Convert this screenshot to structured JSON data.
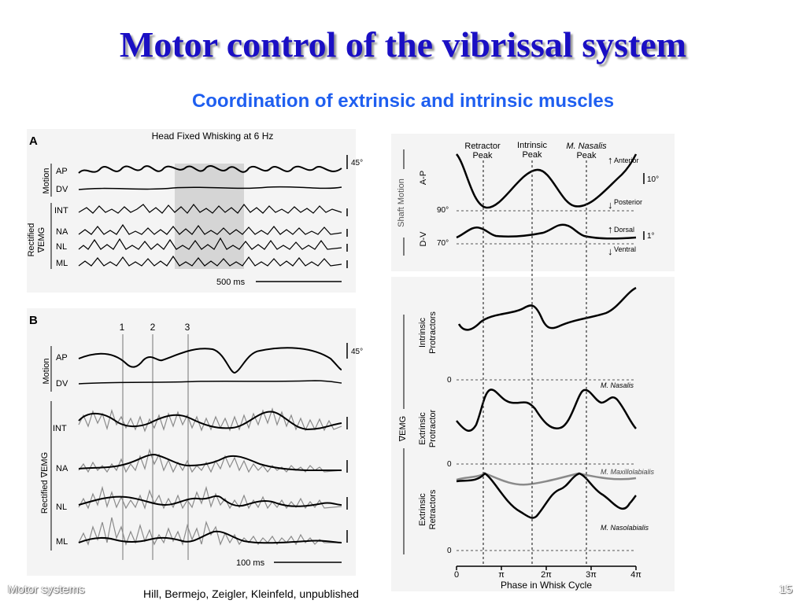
{
  "slide": {
    "title": "Motor control of the vibrissal system",
    "subtitle": "Coordination of extrinsic and intrinsic muscles",
    "footer_left": "Motor systems",
    "citation": "Hill, Bermejo, Zeigler, Kleinfeld, unpublished",
    "page_number": "15"
  },
  "panel_a": {
    "letter": "A",
    "heading": "Head Fixed Whisking at 6 Hz",
    "group_motion": "Motion",
    "group_emg_line1": "Rectified",
    "group_emg_line2": "∇EMG",
    "traces": [
      "AP",
      "DV",
      "INT",
      "NA",
      "NL",
      "ML"
    ],
    "scale_angle": "45°",
    "scale_time": "500 ms"
  },
  "panel_b": {
    "letter": "B",
    "markers": [
      "1",
      "2",
      "3"
    ],
    "group_motion": "Motion",
    "group_emg": "Rectified ∇EMG",
    "traces": [
      "AP",
      "DV",
      "INT",
      "NA",
      "NL",
      "ML"
    ],
    "scale_angle": "45°",
    "scale_time": "100 ms"
  },
  "panel_c": {
    "peaks": [
      {
        "line1": "Retractor",
        "line2": "Peak"
      },
      {
        "line1": "Intrinsic",
        "line2": "Peak"
      },
      {
        "line1": "M. Nasalis",
        "line2": "Peak"
      }
    ],
    "group_label": "Shaft Motion",
    "ap_label": "A-P",
    "dv_label": "D-V",
    "tick_90": "90°",
    "tick_70": "70°",
    "anterior": "Anterior",
    "posterior": "Posterior",
    "dorsal": "Dorsal",
    "ventral": "Ventral",
    "scale_10": "10°",
    "scale_1": "1°"
  },
  "panel_d": {
    "group_label": "∇EMG",
    "row1_line1": "Intrinsic",
    "row1_line2": "Protractors",
    "row2_line1": "Extrinsic",
    "row2_line2": "Protractor",
    "row3_line1": "Extrinsic",
    "row3_line2": "Retractors",
    "zero": "0",
    "m_nasalis": "M. Nasalis",
    "m_maxillolabialis": "M. Maxillolabialis",
    "m_nasolabialis": "M. Nasolabialis",
    "x_ticks": [
      "0",
      "π",
      "2π",
      "3π",
      "4π"
    ],
    "x_label": "Phase in Whisk Cycle"
  }
}
